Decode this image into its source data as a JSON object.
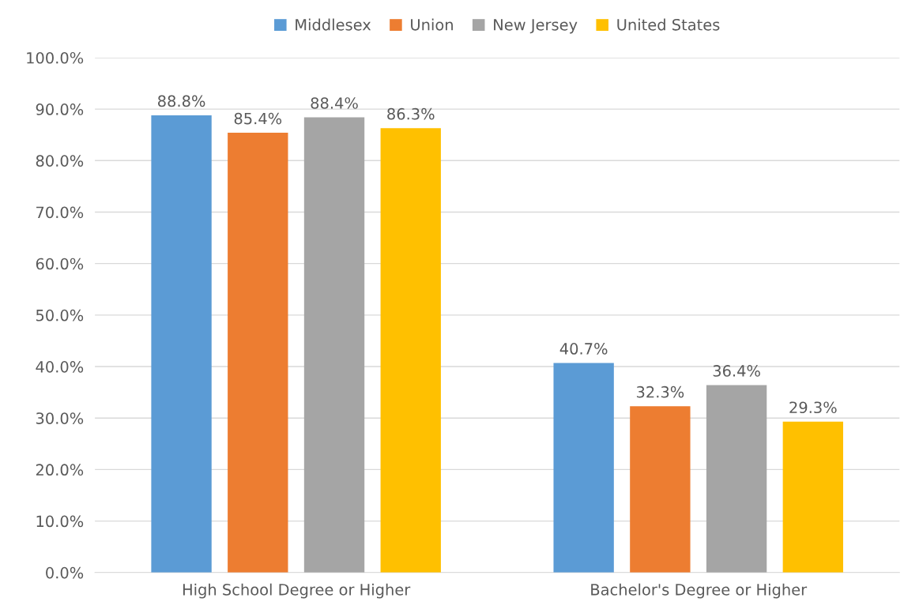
{
  "chart_data": {
    "type": "bar",
    "categories": [
      "High School Degree or Higher",
      "Bachelor's Degree or Higher"
    ],
    "series": [
      {
        "name": "Middlesex",
        "color": "#5b9bd5",
        "values": [
          88.8,
          40.7
        ],
        "value_labels": [
          "88.8%",
          "40.7%"
        ]
      },
      {
        "name": "Union",
        "color": "#ed7d31",
        "values": [
          85.4,
          32.3
        ],
        "value_labels": [
          "85.4%",
          "32.3%"
        ]
      },
      {
        "name": "New Jersey",
        "color": "#a5a5a5",
        "values": [
          88.4,
          36.4
        ],
        "value_labels": [
          "88.4%",
          "36.4%"
        ]
      },
      {
        "name": "United States",
        "color": "#ffc000",
        "values": [
          86.3,
          29.3
        ],
        "value_labels": [
          "86.3%",
          "29.3%"
        ]
      }
    ],
    "ylim": [
      0,
      100
    ],
    "yticks": [
      {
        "value": 0,
        "label": "0.0%"
      },
      {
        "value": 10,
        "label": "10.0%"
      },
      {
        "value": 20,
        "label": "20.0%"
      },
      {
        "value": 30,
        "label": "30.0%"
      },
      {
        "value": 40,
        "label": "40.0%"
      },
      {
        "value": 50,
        "label": "50.0%"
      },
      {
        "value": 60,
        "label": "60.0%"
      },
      {
        "value": 70,
        "label": "70.0%"
      },
      {
        "value": 80,
        "label": "80.0%"
      },
      {
        "value": 90,
        "label": "90.0%"
      },
      {
        "value": 100,
        "label": "100.0%"
      }
    ],
    "grid": "y",
    "legend": "top"
  }
}
